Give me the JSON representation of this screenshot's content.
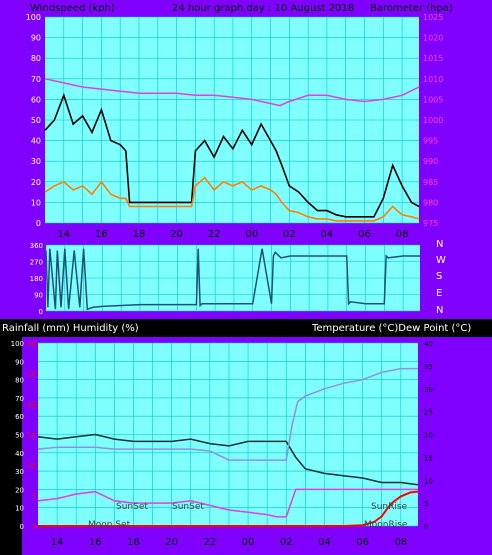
{
  "window": {
    "header_left": "Windspeed (kph)",
    "header_center": "24 hour graph day : 10 August 2018",
    "header_right": "Barometer (hpa)",
    "mid_left": "Rainfall (mm)  Humidity (%)",
    "mid_right": "Temperature (°C)Dew Point (°C)",
    "compass": [
      "N",
      "W",
      "S",
      "E",
      "N"
    ]
  },
  "colors": {
    "frame": "#8000ff",
    "plot_bg": "#80ffff",
    "grid": "#00c8c8",
    "wind_gust": "#000000",
    "wind_avg": "#ff8000",
    "wind_green": "#b0ffb0",
    "barometer": "#e040e0",
    "direction": "#20507a",
    "temperature": "#103030",
    "humidity": "#9090e0",
    "dew_point": "#e040e0",
    "rain": "#ff0000",
    "axis_red": "#ff0000",
    "axis_white": "#ffffff"
  },
  "chart_data": [
    {
      "type": "line",
      "name": "wind",
      "x_ticks": [
        "14",
        "16",
        "18",
        "20",
        "22",
        "00",
        "02",
        "04",
        "06",
        "08"
      ],
      "y_left_ticks": [
        "0",
        "10",
        "20",
        "30",
        "40",
        "50",
        "60",
        "70",
        "80",
        "90",
        "100"
      ],
      "y_right_ticks": [
        "975",
        "980",
        "985",
        "990",
        "995",
        "1000",
        "1005",
        "1010",
        "1015",
        "1020",
        "1025"
      ],
      "ylim_left": [
        0,
        100
      ],
      "ylim_right": [
        975,
        1025
      ],
      "series": [
        {
          "key": "gust",
          "x": [
            13.0,
            13.5,
            14.0,
            14.5,
            15.0,
            15.5,
            16.0,
            16.5,
            17.0,
            17.3,
            17.5,
            18.0,
            19.0,
            20.0,
            20.6,
            20.8,
            21.0,
            21.5,
            22.0,
            22.5,
            23.0,
            23.5,
            24.0,
            24.5,
            25.0,
            25.3,
            25.6,
            26.0,
            26.5,
            27.0,
            27.5,
            28.0,
            28.5,
            29.0,
            29.5,
            30.0,
            30.5,
            31.0,
            31.5,
            32.0,
            32.5,
            32.9
          ],
          "y": [
            45,
            50,
            62,
            48,
            52,
            44,
            55,
            40,
            38,
            35,
            10,
            10,
            10,
            10,
            10,
            10,
            35,
            40,
            32,
            42,
            36,
            45,
            38,
            48,
            40,
            35,
            28,
            18,
            15,
            10,
            6,
            6,
            4,
            3,
            3,
            3,
            3,
            12,
            28,
            18,
            10,
            8
          ]
        },
        {
          "key": "average",
          "x": [
            13.0,
            13.5,
            14.0,
            14.5,
            15.0,
            15.5,
            16.0,
            16.5,
            17.0,
            17.3,
            17.5,
            18.0,
            19.0,
            20.0,
            20.6,
            20.8,
            21.0,
            21.5,
            22.0,
            22.5,
            23.0,
            23.5,
            24.0,
            24.5,
            25.0,
            25.3,
            25.6,
            26.0,
            26.5,
            27.0,
            27.5,
            28.0,
            28.5,
            29.0,
            29.5,
            30.0,
            30.5,
            31.0,
            31.5,
            32.0,
            32.5,
            32.9
          ],
          "y": [
            15,
            18,
            20,
            16,
            18,
            14,
            20,
            14,
            12,
            12,
            8,
            8,
            8,
            8,
            8,
            8,
            18,
            22,
            16,
            20,
            18,
            20,
            16,
            18,
            16,
            14,
            10,
            6,
            5,
            3,
            2,
            2,
            1,
            1,
            1,
            1,
            1,
            3,
            8,
            4,
            3,
            2
          ]
        },
        {
          "key": "barometer",
          "x": [
            13.0,
            14.0,
            15.0,
            16.0,
            17.0,
            18.0,
            19.0,
            20.0,
            21.0,
            22.0,
            23.0,
            24.0,
            25.0,
            25.5,
            26.0,
            27.0,
            28.0,
            29.0,
            30.0,
            31.0,
            32.0,
            32.9
          ],
          "y": [
            1010,
            1009,
            1008,
            1007.5,
            1007,
            1006.5,
            1006.5,
            1006.5,
            1006,
            1006,
            1005.5,
            1005,
            1004,
            1003.5,
            1004.5,
            1006,
            1006,
            1005,
            1004.5,
            1005,
            1006,
            1008
          ]
        }
      ]
    },
    {
      "type": "line",
      "name": "direction",
      "y_ticks": [
        "0",
        "90",
        "180",
        "270",
        "360"
      ],
      "ylim": [
        0,
        360
      ],
      "series": [
        {
          "key": "direction",
          "x": [
            13.0,
            13.1,
            13.2,
            13.5,
            13.6,
            13.8,
            14.0,
            14.2,
            14.5,
            14.8,
            15.0,
            15.2,
            15.5,
            16.0,
            17.0,
            18.0,
            19.0,
            20.0,
            21.0,
            21.1,
            21.2,
            21.3,
            22.0,
            23.0,
            24.0,
            24.5,
            25.0,
            25.1,
            25.2,
            25.5,
            26.0,
            27.0,
            27.5,
            28.0,
            28.5,
            29.0,
            29.1,
            29.2,
            30.0,
            31.0,
            31.1,
            31.2,
            32.0,
            32.9
          ],
          "y": [
            330,
            20,
            340,
            10,
            330,
            20,
            340,
            10,
            330,
            20,
            340,
            10,
            20,
            25,
            30,
            35,
            35,
            35,
            35,
            340,
            30,
            40,
            40,
            40,
            40,
            340,
            40,
            300,
            320,
            290,
            300,
            300,
            300,
            300,
            300,
            300,
            40,
            50,
            40,
            40,
            300,
            290,
            300,
            300
          ]
        }
      ]
    },
    {
      "type": "line",
      "name": "temperature",
      "x_ticks": [
        "14",
        "16",
        "18",
        "20",
        "22",
        "00",
        "02",
        "04",
        "06",
        "08"
      ],
      "y_left_ticks": [
        "0",
        "10",
        "20",
        "30",
        "40",
        "50",
        "60",
        "70",
        "80",
        "90",
        "100"
      ],
      "y_left_red_ticks": [
        "0",
        "5",
        "10",
        "15",
        "20",
        "25",
        "30"
      ],
      "y_right_ticks": [
        "0",
        "5",
        "10",
        "15",
        "20",
        "25",
        "30",
        "35",
        "40"
      ],
      "annotations": [
        "SunSet",
        "SunSet",
        "SunRise",
        "Moon Set",
        "MoonRise"
      ],
      "series": [
        {
          "key": "temperature",
          "x": [
            13.0,
            14.0,
            15.0,
            16.0,
            17.0,
            18.0,
            19.0,
            20.0,
            21.0,
            22.0,
            23.0,
            24.0,
            25.0,
            25.5,
            26.0,
            26.5,
            27.0,
            28.0,
            29.0,
            30.0,
            31.0,
            32.0,
            32.9
          ],
          "y": [
            19.5,
            19,
            19.5,
            20,
            19,
            18.5,
            18.5,
            18.5,
            19,
            18,
            17.5,
            18.5,
            18.5,
            18.5,
            18.5,
            15,
            12.5,
            11.5,
            11,
            10.5,
            9.5,
            9.5,
            9
          ]
        },
        {
          "key": "humidity",
          "x": [
            13.0,
            14.0,
            15.0,
            16.0,
            17.0,
            18.0,
            19.0,
            20.0,
            21.0,
            22.0,
            23.0,
            24.0,
            25.0,
            25.5,
            26.0,
            26.3,
            26.6,
            27.0,
            28.0,
            29.0,
            30.0,
            31.0,
            32.0,
            32.9
          ],
          "y": [
            42,
            43,
            43,
            43,
            42,
            42,
            42,
            42,
            42,
            41,
            36,
            36,
            36,
            36,
            36,
            55,
            68,
            71,
            75,
            78,
            80,
            84,
            86,
            86
          ]
        },
        {
          "key": "dew_point",
          "x": [
            13.0,
            14.0,
            15.0,
            16.0,
            17.0,
            18.0,
            19.0,
            20.0,
            21.0,
            22.0,
            23.0,
            24.0,
            25.0,
            25.5,
            26.0,
            26.5,
            27.0,
            28.0,
            29.0,
            30.0,
            31.0,
            32.0,
            32.9
          ],
          "y": [
            5.5,
            6,
            7,
            7.5,
            5.5,
            5,
            5,
            5,
            5.5,
            4.5,
            3.5,
            3,
            2.5,
            2,
            2,
            8,
            8,
            8,
            8,
            8,
            8,
            8,
            8
          ]
        },
        {
          "key": "rain",
          "x": [
            13.0,
            20.0,
            26.0,
            29.0,
            30.0,
            30.6,
            31.0,
            31.3,
            31.6,
            32.0,
            32.5,
            32.9
          ],
          "y": [
            0,
            0,
            0,
            0,
            0.1,
            0.5,
            1.2,
            2.2,
            3.0,
            3.7,
            4.2,
            4.3
          ]
        }
      ]
    }
  ]
}
